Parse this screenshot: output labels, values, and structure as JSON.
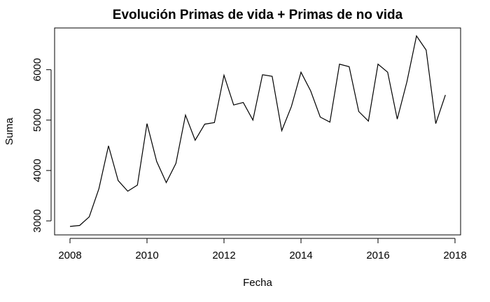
{
  "chart_data": {
    "type": "line",
    "title": "Evolución Primas de vida + Primas de no vida",
    "xlabel": "Fecha",
    "ylabel": "Suma",
    "xlim": [
      2008,
      2018
    ],
    "ylim": [
      3000,
      6000
    ],
    "x_ticks": [
      "2008",
      "2010",
      "2012",
      "2014",
      "2016",
      "2018"
    ],
    "y_ticks": [
      "3000",
      "4000",
      "5000",
      "6000"
    ],
    "grid": false,
    "legend": "none",
    "line_color": "#000000",
    "series": [
      {
        "x": [
          2008.0,
          2008.25,
          2008.5,
          2008.75,
          2009.0,
          2009.25,
          2009.5,
          2009.75,
          2010.0,
          2010.25,
          2010.5,
          2010.75,
          2011.0,
          2011.25,
          2011.5,
          2011.75,
          2012.0,
          2012.25,
          2012.5,
          2012.75,
          2013.0,
          2013.25,
          2013.5,
          2013.75,
          2014.0,
          2014.25,
          2014.5,
          2014.75,
          2015.0,
          2015.25,
          2015.5,
          2015.75,
          2016.0,
          2016.25,
          2016.5,
          2016.75,
          2017.0,
          2017.25,
          2017.5,
          2017.75
        ],
        "values": [
          2890,
          2910,
          3080,
          3640,
          4490,
          3800,
          3590,
          3710,
          4930,
          4180,
          3760,
          4140,
          5100,
          4600,
          4920,
          4950,
          5890,
          5300,
          5350,
          5000,
          5900,
          5870,
          4790,
          5270,
          5950,
          5580,
          5060,
          4960,
          6110,
          6060,
          5170,
          4980,
          6110,
          5950,
          5020,
          5760,
          6670,
          6390,
          4930,
          5500
        ]
      }
    ]
  }
}
